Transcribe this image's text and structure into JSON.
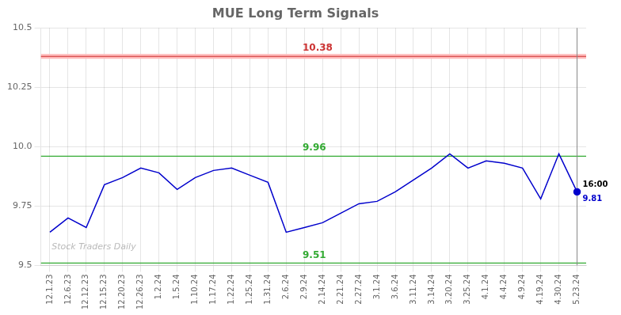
{
  "chart_data": {
    "type": "line",
    "title": "MUE Long Term Signals",
    "categories": [
      "12.1.23",
      "12.6.23",
      "12.12.23",
      "12.15.23",
      "12.20.23",
      "12.26.23",
      "1.2.24",
      "1.5.24",
      "1.10.24",
      "1.17.24",
      "1.22.24",
      "1.25.24",
      "1.31.24",
      "2.6.24",
      "2.9.24",
      "2.14.24",
      "2.21.24",
      "2.27.24",
      "3.1.24",
      "3.6.24",
      "3.11.24",
      "3.14.24",
      "3.20.24",
      "3.25.24",
      "4.1.24",
      "4.4.24",
      "4.9.24",
      "4.19.24",
      "4.30.24",
      "5.23.24"
    ],
    "values": [
      9.64,
      9.7,
      9.66,
      9.84,
      9.87,
      9.91,
      9.89,
      9.82,
      9.87,
      9.9,
      9.91,
      9.88,
      9.85,
      9.64,
      9.66,
      9.68,
      9.72,
      9.76,
      9.77,
      9.81,
      9.86,
      9.91,
      9.97,
      9.91,
      9.94,
      9.93,
      9.91,
      9.78,
      9.97,
      9.81
    ],
    "color": "#0000cc",
    "ylim": [
      9.5,
      10.5
    ],
    "yticks": [
      9.5,
      9.75,
      {
        "value": 10,
        "label": "10.0"
      },
      10.25,
      10.5
    ],
    "grid": true,
    "hlines": [
      {
        "value": 10.38,
        "color": "#cc3333",
        "band_color": "#ffbbbb"
      },
      {
        "value": 9.96,
        "color": "#33aa33"
      },
      {
        "value": 9.51,
        "color": "#33aa33"
      }
    ],
    "annotations": [
      {
        "text": "16:00",
        "x": "5.23.24",
        "y": 9.81,
        "position": "above",
        "color": "#000000"
      },
      {
        "text": "9.81",
        "x": "5.23.24",
        "y": 9.81,
        "position": "below",
        "color": "#0000cc"
      },
      {
        "text": "Stock Traders Daily",
        "position": "watermark",
        "color": "#808080"
      }
    ]
  }
}
